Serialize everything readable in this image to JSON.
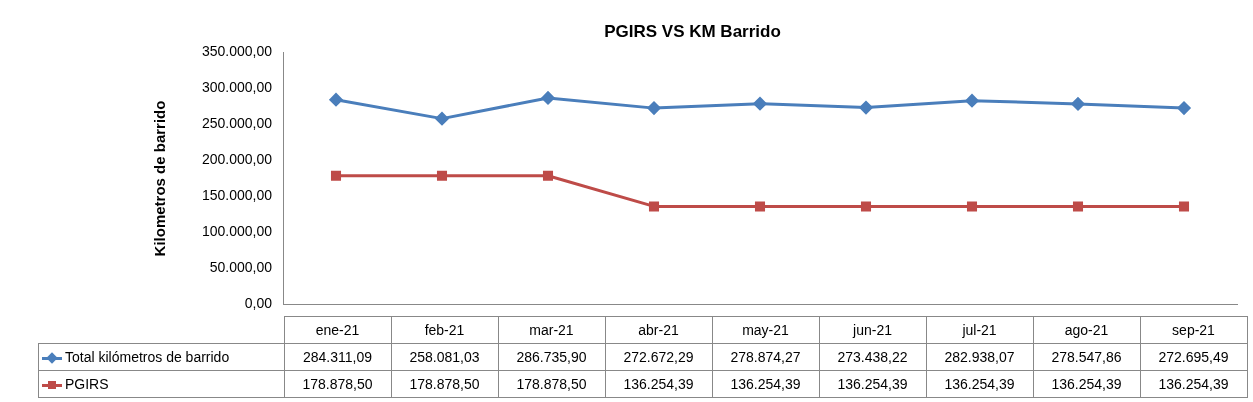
{
  "chart_data": {
    "type": "line",
    "title": "PGIRS VS KM Barrido",
    "ylabel": "Kilometros de barrido",
    "categories": [
      "ene-21",
      "feb-21",
      "mar-21",
      "abr-21",
      "may-21",
      "jun-21",
      "jul-21",
      "ago-21",
      "sep-21"
    ],
    "series": [
      {
        "name": "Total kilómetros de barrido",
        "color": "#4a7ebb",
        "marker": "diamond",
        "values": [
          284311.09,
          258081.03,
          286735.9,
          272672.29,
          278874.27,
          273438.22,
          282938.07,
          278547.86,
          272695.49
        ],
        "value_labels": [
          "284.311,09",
          "258.081,03",
          "286.735,90",
          "272.672,29",
          "278.874,27",
          "273.438,22",
          "282.938,07",
          "278.547,86",
          "272.695,49"
        ]
      },
      {
        "name": "PGIRS",
        "color": "#be4b48",
        "marker": "square",
        "values": [
          178878.5,
          178878.5,
          178878.5,
          136254.39,
          136254.39,
          136254.39,
          136254.39,
          136254.39,
          136254.39
        ],
        "value_labels": [
          "178.878,50",
          "178.878,50",
          "178.878,50",
          "136.254,39",
          "136.254,39",
          "136.254,39",
          "136.254,39",
          "136.254,39",
          "136.254,39"
        ]
      }
    ],
    "ylim": [
      0,
      350000
    ],
    "yticks": [
      {
        "value": 0,
        "label": "0,00"
      },
      {
        "value": 50000,
        "label": "50.000,00"
      },
      {
        "value": 100000,
        "label": "100.000,00"
      },
      {
        "value": 150000,
        "label": "150.000,00"
      },
      {
        "value": 200000,
        "label": "200.000,00"
      },
      {
        "value": 250000,
        "label": "250.000,00"
      },
      {
        "value": 300000,
        "label": "300.000,00"
      },
      {
        "value": 350000,
        "label": "350.000,00"
      }
    ],
    "grid": false,
    "legend": "bottom",
    "line_style": "solid"
  }
}
